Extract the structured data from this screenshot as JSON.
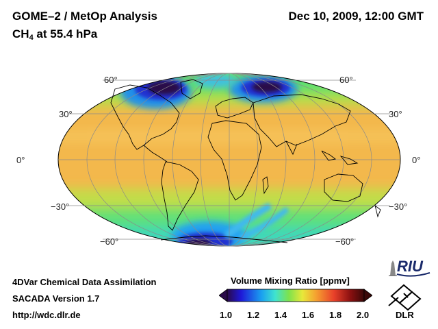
{
  "header": {
    "title_line1": "GOME–2 / MetOp Analysis",
    "title_line2_prefix": "CH",
    "title_line2_sub": "4",
    "title_line2_suffix": " at 55.4 hPa",
    "datetime": "Dec 10, 2009, 12:00 GMT"
  },
  "map": {
    "projection": "Mollweide",
    "lat_labels": {
      "n60_left": "60°",
      "n60_right": "60°",
      "n30_left": "30°",
      "n30_right": "30°",
      "eq_left": "0°",
      "eq_right": "0°",
      "s30_left": "−30°",
      "s30_right": "−30°",
      "s60_left": "−60°",
      "s60_right": "−60°"
    },
    "gridlines": "every 30°",
    "background_field_color": "#f3b84c"
  },
  "footer": {
    "line1": "4DVar Chemical Data Assimilation",
    "line2": "SACADA Version 1.7",
    "line3": "http://wdc.dlr.de"
  },
  "colorbar": {
    "title": "Volume Mixing Ratio [ppmv]",
    "min": 1.0,
    "max": 2.0,
    "ticks": [
      "1.0",
      "1.2",
      "1.4",
      "1.6",
      "1.8",
      "2.0"
    ],
    "colors": [
      "#2a0a4a",
      "#1e18d8",
      "#1aa0f0",
      "#3fe3d0",
      "#7ee24c",
      "#e8e83a",
      "#f5a030",
      "#e8402a",
      "#8a1010",
      "#3a0808"
    ]
  },
  "logos": {
    "riu_text": "RIU",
    "dlr_text": "DLR"
  }
}
